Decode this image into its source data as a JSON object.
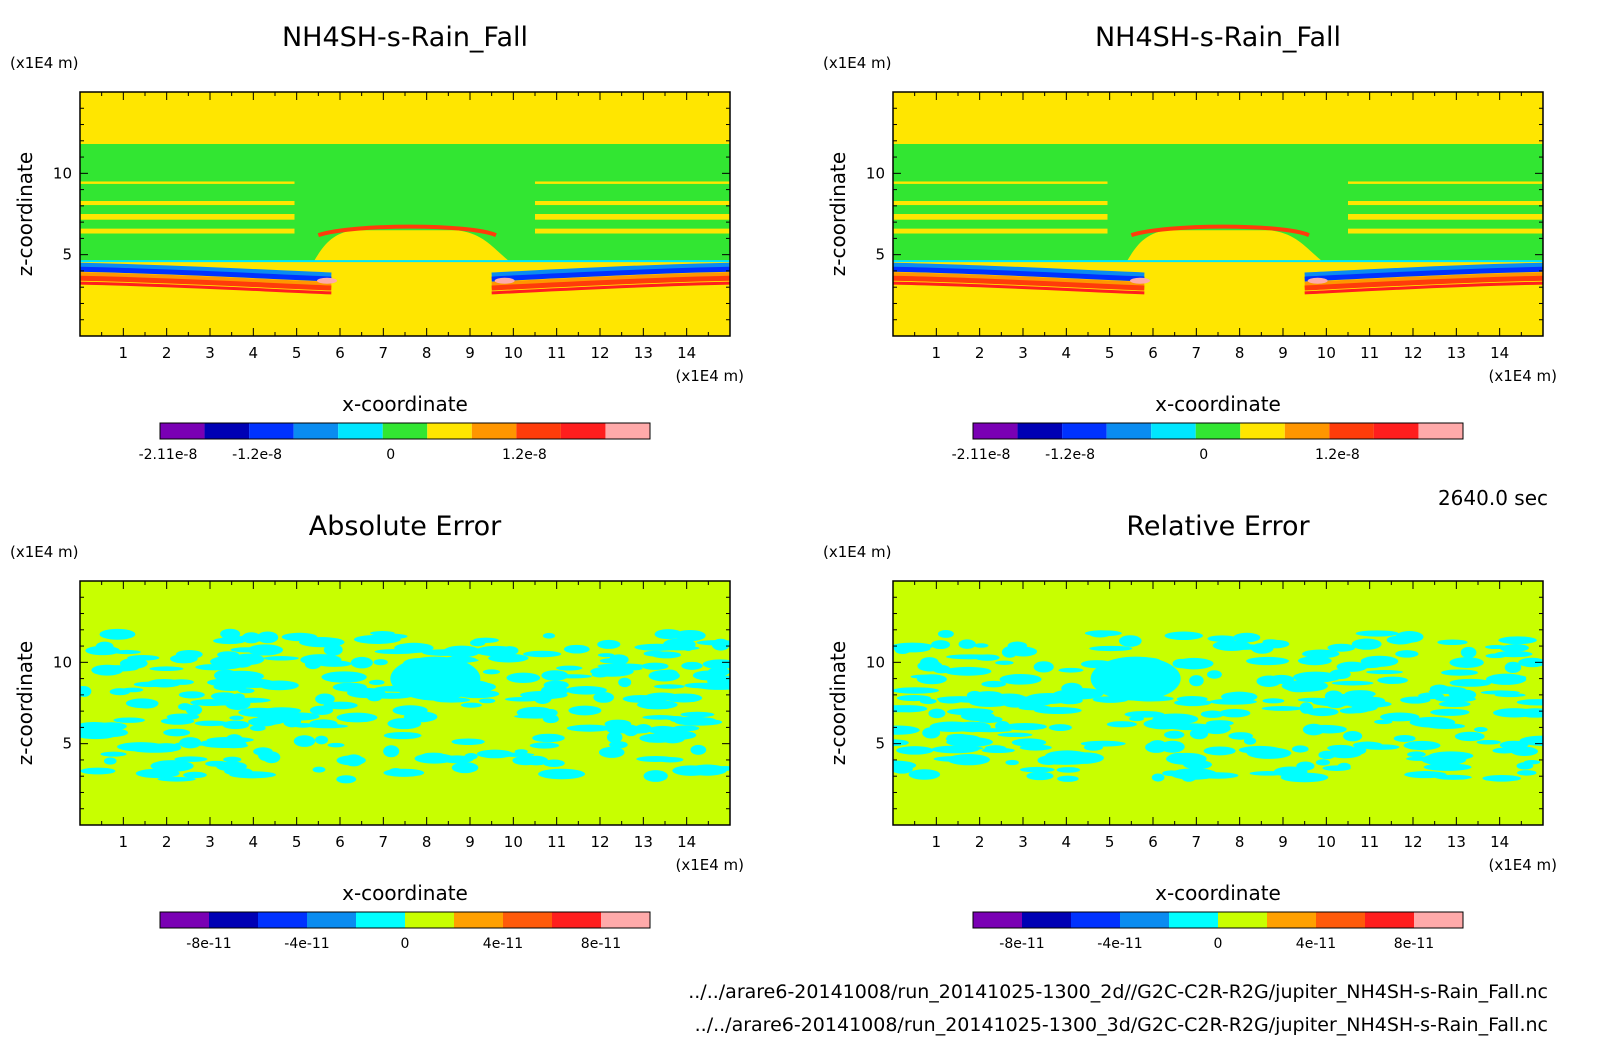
{
  "timestamp": "2640.0 sec",
  "footer_lines": [
    "../../arare6-20141008/run_20141025-1300_2d//G2C-C2R-R2G/jupiter_NH4SH-s-Rain_Fall.nc",
    "../../arare6-20141008/run_20141025-1300_3d/G2C-C2R-R2G/jupiter_NH4SH-s-Rain_Fall.nc"
  ],
  "chart_data": [
    {
      "type": "heatmap",
      "title": "NH4SH-s-Rain_Fall",
      "xlabel": "x-coordinate",
      "ylabel": "z-coordinate",
      "x_unit": "(x1E4 m)",
      "y_unit": "(x1E4 m)",
      "xlim": [
        0,
        15
      ],
      "ylim": [
        0,
        15
      ],
      "x_ticks": [
        "1",
        "2",
        "3",
        "4",
        "5",
        "6",
        "7",
        "8",
        "9",
        "10",
        "11",
        "12",
        "13",
        "14"
      ],
      "y_ticks": [
        "5",
        "10"
      ],
      "colorbar": {
        "colors": [
          "#7a00b4",
          "#0000b4",
          "#0032ff",
          "#0a8cf0",
          "#00e6ff",
          "#32e632",
          "#ffe600",
          "#ff9600",
          "#ff3c0a",
          "#ff1e1e",
          "#ffaaaa"
        ],
        "labels": [
          "-2.11e-8",
          "-1.2e-8",
          "0",
          "1.2e-8"
        ]
      }
    },
    {
      "type": "heatmap",
      "title": "NH4SH-s-Rain_Fall",
      "xlabel": "x-coordinate",
      "ylabel": "z-coordinate",
      "x_unit": "(x1E4 m)",
      "y_unit": "(x1E4 m)",
      "xlim": [
        0,
        15
      ],
      "ylim": [
        0,
        15
      ],
      "x_ticks": [
        "1",
        "2",
        "3",
        "4",
        "5",
        "6",
        "7",
        "8",
        "9",
        "10",
        "11",
        "12",
        "13",
        "14"
      ],
      "y_ticks": [
        "5",
        "10"
      ],
      "colorbar": {
        "colors": [
          "#7a00b4",
          "#0000b4",
          "#0032ff",
          "#0a8cf0",
          "#00e6ff",
          "#32e632",
          "#ffe600",
          "#ff9600",
          "#ff3c0a",
          "#ff1e1e",
          "#ffaaaa"
        ],
        "labels": [
          "-2.11e-8",
          "-1.2e-8",
          "0",
          "1.2e-8"
        ]
      }
    },
    {
      "type": "heatmap",
      "title": "Absolute Error",
      "xlabel": "x-coordinate",
      "ylabel": "z-coordinate",
      "x_unit": "(x1E4 m)",
      "y_unit": "(x1E4 m)",
      "xlim": [
        0,
        15
      ],
      "ylim": [
        0,
        15
      ],
      "x_ticks": [
        "1",
        "2",
        "3",
        "4",
        "5",
        "6",
        "7",
        "8",
        "9",
        "10",
        "11",
        "12",
        "13",
        "14"
      ],
      "y_ticks": [
        "5",
        "10"
      ],
      "colorbar": {
        "colors": [
          "#7a00b4",
          "#0000b4",
          "#0032ff",
          "#0a8cf0",
          "#00ffff",
          "#c8ff00",
          "#ffa000",
          "#ff5a0a",
          "#ff1e1e",
          "#ffaaaa"
        ],
        "labels": [
          "-8e-11",
          "-4e-11",
          "0",
          "4e-11",
          "8e-11"
        ]
      }
    },
    {
      "type": "heatmap",
      "title": "Relative Error",
      "xlabel": "x-coordinate",
      "ylabel": "z-coordinate",
      "x_unit": "(x1E4 m)",
      "y_unit": "(x1E4 m)",
      "xlim": [
        0,
        15
      ],
      "ylim": [
        0,
        15
      ],
      "x_ticks": [
        "1",
        "2",
        "3",
        "4",
        "5",
        "6",
        "7",
        "8",
        "9",
        "10",
        "11",
        "12",
        "13",
        "14"
      ],
      "y_ticks": [
        "5",
        "10"
      ],
      "colorbar": {
        "colors": [
          "#7a00b4",
          "#0000b4",
          "#0032ff",
          "#0a8cf0",
          "#00ffff",
          "#c8ff00",
          "#ffa000",
          "#ff5a0a",
          "#ff1e1e",
          "#ffaaaa"
        ],
        "labels": [
          "-8e-11",
          "-4e-11",
          "0",
          "4e-11",
          "8e-11"
        ]
      }
    }
  ]
}
